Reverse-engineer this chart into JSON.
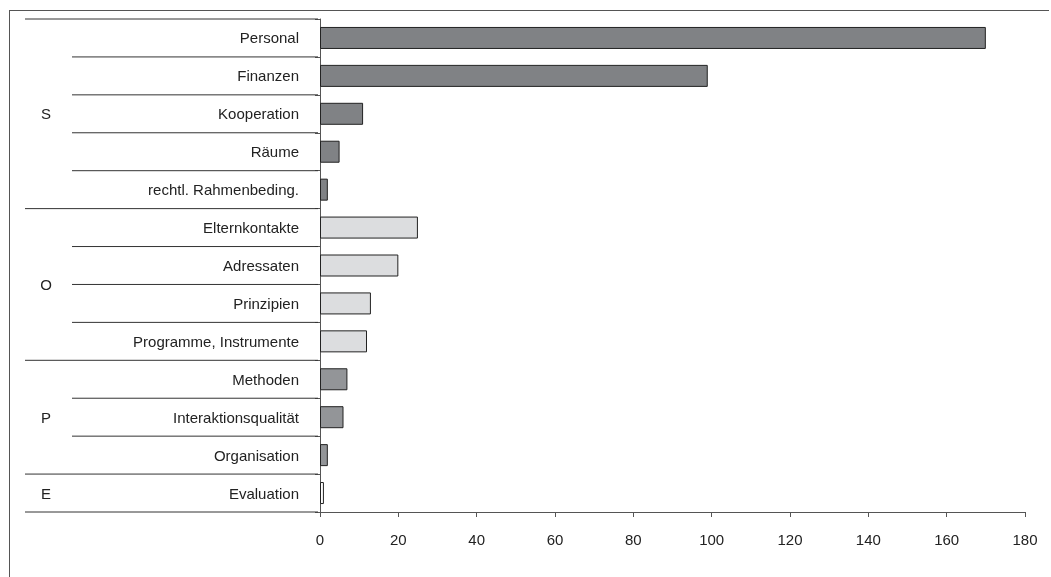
{
  "chart_data": {
    "type": "bar",
    "orientation": "horizontal",
    "categories": [
      "Personal",
      "Finanzen",
      "Kooperation",
      "Räume",
      "rechtl. Rahmenbeding.",
      "Elternkontakte",
      "Adressaten",
      "Prinzipien",
      "Programme, Instrumente",
      "Methoden",
      "Interaktionsqualität",
      "Organisation",
      "Evaluation"
    ],
    "values": [
      170,
      99,
      11,
      5,
      2,
      25,
      20,
      13,
      12,
      7,
      6,
      2,
      1
    ],
    "colors": [
      "#808285",
      "#808285",
      "#808285",
      "#808285",
      "#808285",
      "#dcdddf",
      "#dcdddf",
      "#dcdddf",
      "#dcdddf",
      "#939598",
      "#939598",
      "#939598",
      "#ffffff"
    ],
    "xlim": [
      0,
      180
    ],
    "xticks": [
      0,
      20,
      40,
      60,
      80,
      100,
      120,
      140,
      160,
      180
    ],
    "grid": false,
    "annotations": [
      "S",
      "O",
      "P",
      "E"
    ]
  }
}
